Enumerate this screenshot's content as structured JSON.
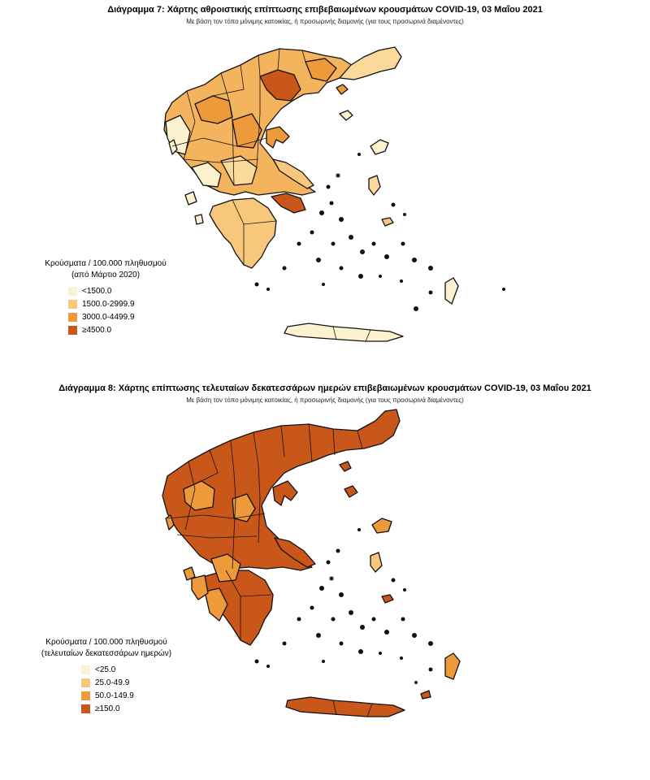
{
  "map1": {
    "title": "Διάγραμμα 7: Χάρτης αθροιστικής επίπτωσης επιβεβαιωμένων κρουσμάτων COVID-19, 03 Μαΐου 2021",
    "subtitle": "Με βάση τον τόπο μόνιμης κατοικίας, ή προσωρινής διαμονής (για τους προσωρινά διαμένοντες)",
    "legend": {
      "title_line1": "Κρούσματα / 100.000 πληθυσμού",
      "title_line2": "(από Μάρτιο 2020)",
      "items": [
        {
          "label": "<1500.0",
          "color": "#fdf2cf"
        },
        {
          "label": "1500.0-2999.9",
          "color": "#f7c87c"
        },
        {
          "label": "3000.0-4499.9",
          "color": "#ee9a3a"
        },
        {
          "label": "≥4500.0",
          "color": "#c9571a"
        }
      ]
    }
  },
  "map2": {
    "title": "Διάγραμμα 8: Χάρτης επίπτωσης τελευταίων δεκατεσσάρων ημερών επιβεβαιωμένων κρουσμάτων COVID-19, 03 Μαΐου 2021",
    "subtitle": "Με βάση τον τόπο μόνιμης κατοικίας, ή προσωρινής διαμονής (για τους προσωρινά διαμένοντες)",
    "legend": {
      "title_line1": "Κρούσματα / 100.000 πληθυσμού",
      "title_line2": "(τελευταίων δεκατεσσάρων ημερών)",
      "items": [
        {
          "label": "<25.0",
          "color": "#fdf2cf"
        },
        {
          "label": "25.0-49.9",
          "color": "#f7c87c"
        },
        {
          "label": "50.0-149.9",
          "color": "#ee9a3a"
        },
        {
          "label": "≥150.0",
          "color": "#c9571a"
        }
      ]
    }
  }
}
